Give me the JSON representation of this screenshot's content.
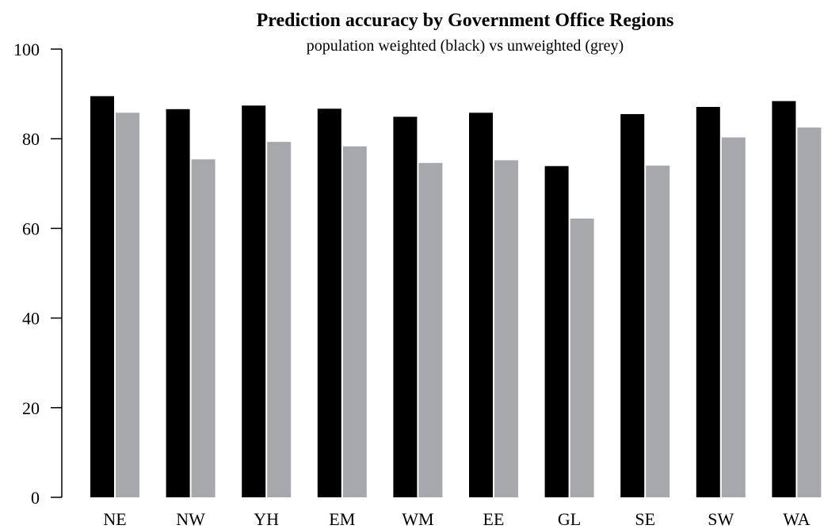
{
  "chart_data": {
    "type": "bar",
    "title": "Prediction accuracy by Government Office Regions",
    "subtitle": "population weighted (black) vs unweighted (grey)",
    "xlabel": "",
    "ylabel": "",
    "ylim": [
      0,
      100
    ],
    "yticks": [
      0,
      20,
      40,
      60,
      80,
      100
    ],
    "categories": [
      "NE",
      "NW",
      "YH",
      "EM",
      "WM",
      "EE",
      "GL",
      "SE",
      "SW",
      "WA"
    ],
    "series": [
      {
        "color": "#000000",
        "values": [
          89.5,
          86.6,
          87.4,
          86.7,
          84.9,
          85.8,
          73.9,
          85.5,
          87.1,
          88.4
        ]
      },
      {
        "color": "#a7a8ab",
        "values": [
          85.8,
          75.4,
          79.3,
          78.3,
          74.6,
          75.2,
          62.2,
          74.0,
          80.3,
          82.5
        ]
      }
    ],
    "grid": false,
    "legend": "none"
  }
}
